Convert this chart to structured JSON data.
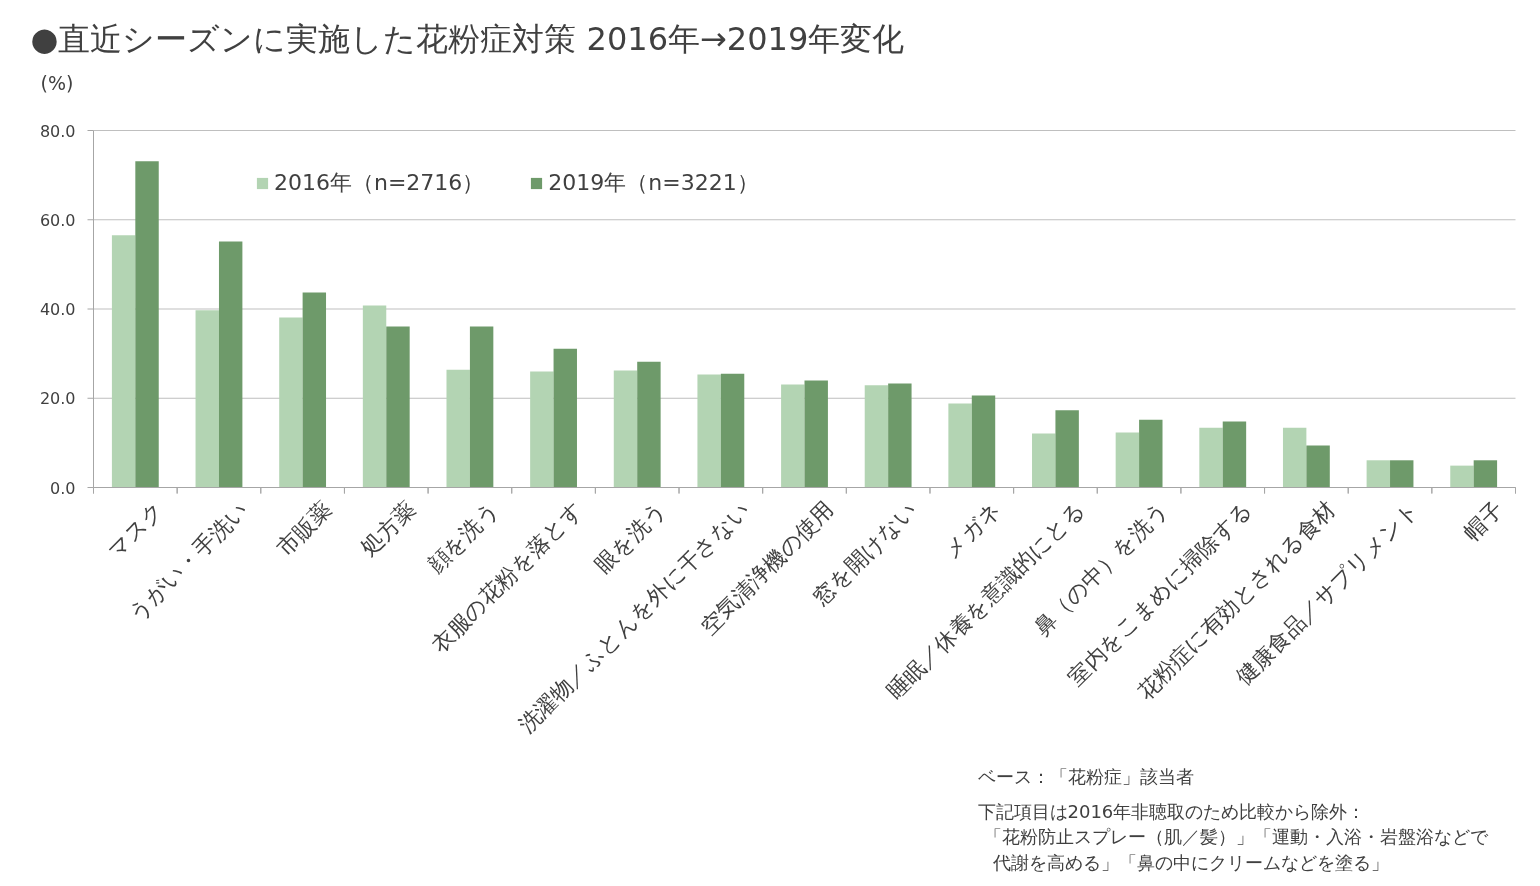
{
  "chart_data": {
    "type": "bar",
    "title": "●直近シーズンに実施した花粉症対策 2016年→2019年変化",
    "ylabel": "(%)",
    "categories": [
      "マスク",
      "うがい・手洗い",
      "市販薬",
      "処方薬",
      "顔を洗う",
      "衣服の花粉を落とす",
      "眼を洗う",
      "洗濯物／ふとんを外に干さない",
      "空気清浄機の使用",
      "窓を開けない",
      "メガネ",
      "睡眠／休養を意識的にとる",
      "鼻（の中）を洗う",
      "室内をこまめに掃除する",
      "花粉症に有効とされる食材",
      "健康食品／サプリメント",
      "帽子"
    ],
    "series": [
      {
        "name": "2016年（n=2716）",
        "color": "#b3d4b3",
        "values": [
          56.5,
          39.7,
          38.1,
          40.8,
          26.4,
          26.0,
          26.2,
          25.3,
          23.1,
          22.9,
          18.8,
          12.1,
          12.3,
          13.4,
          13.4,
          6.1,
          4.9
        ]
      },
      {
        "name": "2019年（n=3221）",
        "color": "#6e9a6a",
        "values": [
          73.1,
          55.1,
          43.7,
          36.1,
          36.1,
          31.1,
          28.2,
          25.5,
          24.0,
          23.3,
          20.6,
          17.3,
          15.2,
          14.8,
          9.4,
          6.1,
          6.1
        ]
      }
    ],
    "ylim": [
      0,
      80
    ],
    "yticks": [
      {
        "value": 0,
        "label": "0.0"
      },
      {
        "value": 20,
        "label": "20.0"
      },
      {
        "value": 40,
        "label": "40.0"
      },
      {
        "value": 60,
        "label": "60.0"
      },
      {
        "value": 80,
        "label": "80.0"
      }
    ],
    "grid": "y",
    "legend": "top",
    "annotations": [
      "ベース：「花粉症」該当者",
      "下記項目は2016年非聴取のため比較から除外：",
      "「花粉防止スプレー（肌／髪）」「運動・入浴・岩盤浴などで",
      "代謝を高める」「鼻の中にクリームなどを塗る」"
    ]
  }
}
